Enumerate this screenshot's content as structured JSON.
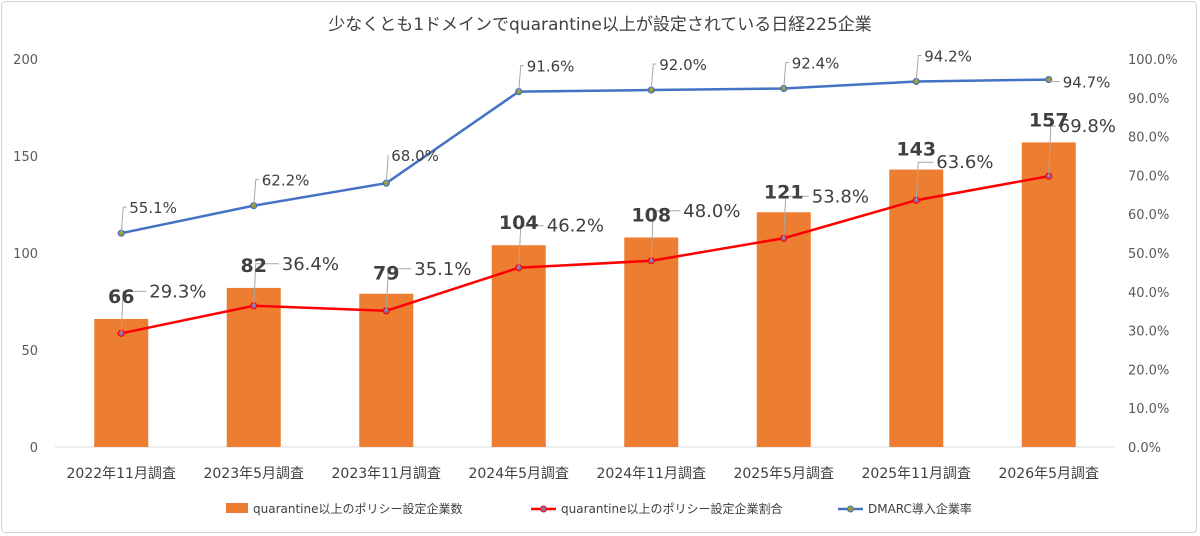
{
  "chart_data": {
    "type": "bar",
    "title": "少なくとも1ドメインでquarantine以上が設定されている日経225企業",
    "categories": [
      "2022年11月調査",
      "2023年5月調査",
      "2023年11月調査",
      "2024年5月調査",
      "2024年11月調査",
      "2025年5月調査",
      "2025年11月調査",
      "2026年5月調査"
    ],
    "y_left": {
      "ylim": [
        0,
        200
      ],
      "ticks": [
        "0",
        "50",
        "100",
        "150",
        "200"
      ]
    },
    "y_right": {
      "ylim": [
        0,
        100
      ],
      "ticks": [
        "0.0%",
        "10.0%",
        "20.0%",
        "30.0%",
        "40.0%",
        "50.0%",
        "60.0%",
        "70.0%",
        "80.0%",
        "90.0%",
        "100.0%"
      ]
    },
    "grid": false,
    "legend_position": "bottom",
    "series": [
      {
        "name": "quarantine以上のポリシー設定企業数",
        "type": "bar",
        "axis": "left",
        "color": "#ED7D31",
        "values": [
          66,
          82,
          79,
          104,
          108,
          121,
          143,
          157
        ],
        "labels": [
          "66",
          "82",
          "79",
          "104",
          "108",
          "121",
          "143",
          "157"
        ]
      },
      {
        "name": "quarantine以上のポリシー設定企業割合",
        "type": "line",
        "axis": "right",
        "color": "#FF0000",
        "values": [
          29.3,
          36.4,
          35.1,
          46.2,
          48.0,
          53.8,
          63.6,
          69.8
        ],
        "labels": [
          "29.3%",
          "36.4%",
          "35.1%",
          "46.2%",
          "48.0%",
          "53.8%",
          "63.6%",
          "69.8%"
        ]
      },
      {
        "name": "DMARC導入企業率",
        "type": "line",
        "axis": "right",
        "color": "#4472C4",
        "values": [
          55.1,
          62.2,
          68.0,
          91.6,
          92.0,
          92.4,
          94.2,
          94.7
        ],
        "labels": [
          "55.1%",
          "62.2%",
          "68.0%",
          "91.6%",
          "92.0%",
          "92.4%",
          "94.2%",
          "94.7%"
        ]
      }
    ]
  }
}
